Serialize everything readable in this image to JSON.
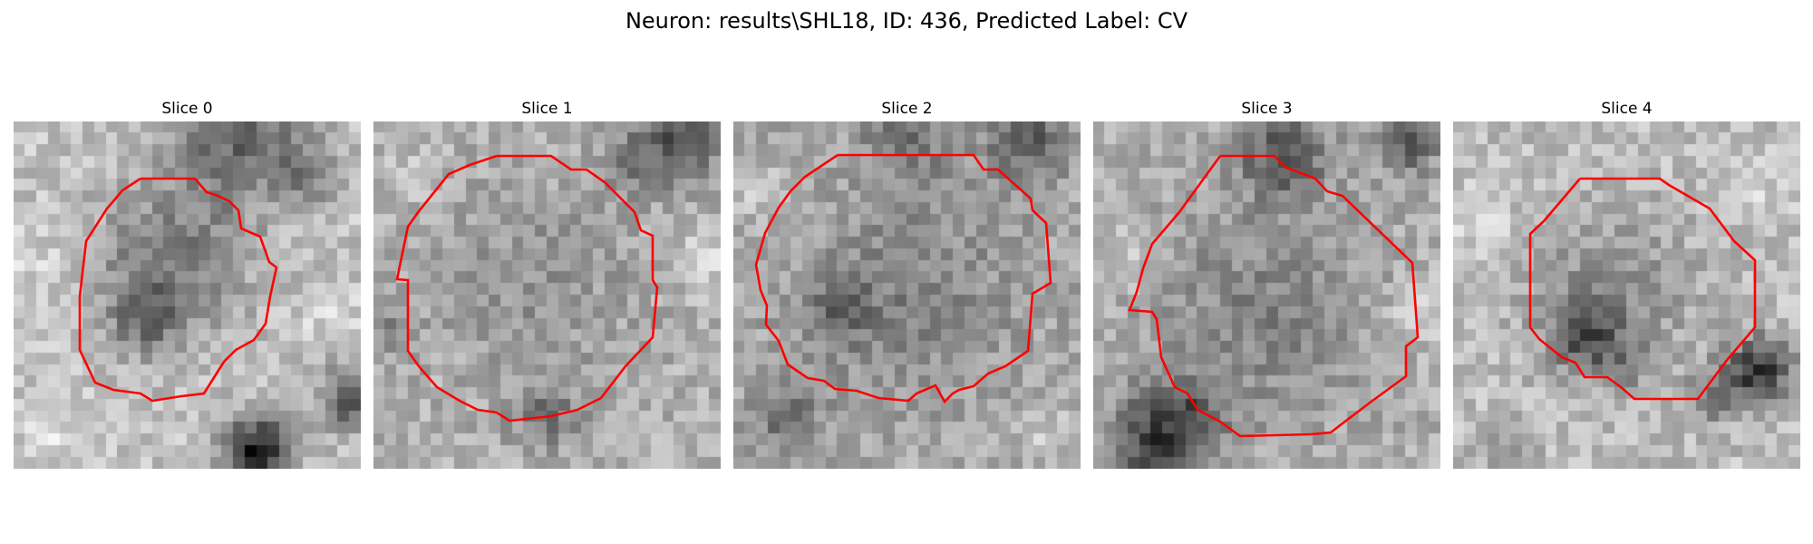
{
  "figure": {
    "title": "Neuron: results\\SHL18, ID: 436, Predicted Label: CV",
    "panels": [
      {
        "title": "Slice 0"
      },
      {
        "title": "Slice 1"
      },
      {
        "title": "Slice 2"
      },
      {
        "title": "Slice 3"
      },
      {
        "title": "Slice 4"
      }
    ],
    "contour_color": "#ff0000",
    "colormap": "grayscale"
  }
}
